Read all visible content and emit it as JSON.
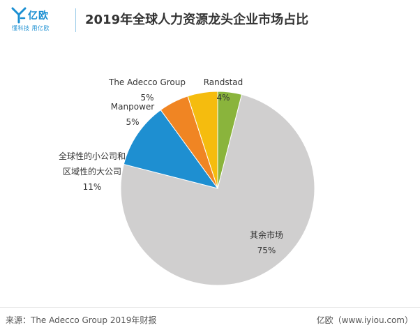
{
  "brand": {
    "name": "亿欧",
    "slogan": "懂科技 用亿欧",
    "accent": "#1b8fd2"
  },
  "chart_data": {
    "type": "pie",
    "title": "2019年全球人力资源龙头企业市场占比",
    "start": "12 o'clock, clockwise",
    "slices": [
      {
        "name": "Randstad",
        "value": 4,
        "label": "4%",
        "color": "#8ab43c"
      },
      {
        "name": "其余市场",
        "value": 75,
        "label": "75%",
        "color": "#d0cfcf"
      },
      {
        "name": "全球性的小公司和区域性的大公司",
        "lines": [
          "全球性的小公司和",
          "区域性的大公司"
        ],
        "value": 11,
        "label": "11%",
        "color": "#1e8fd1"
      },
      {
        "name": "Manpower",
        "value": 5,
        "label": "5%",
        "color": "#f08523"
      },
      {
        "name": "The Adecco Group",
        "value": 5,
        "label": "5%",
        "color": "#f5bc0e"
      }
    ]
  },
  "footer": {
    "source": "来源：The Adecco Group 2019年财报",
    "credit": "亿欧（www.iyiou.com）"
  }
}
